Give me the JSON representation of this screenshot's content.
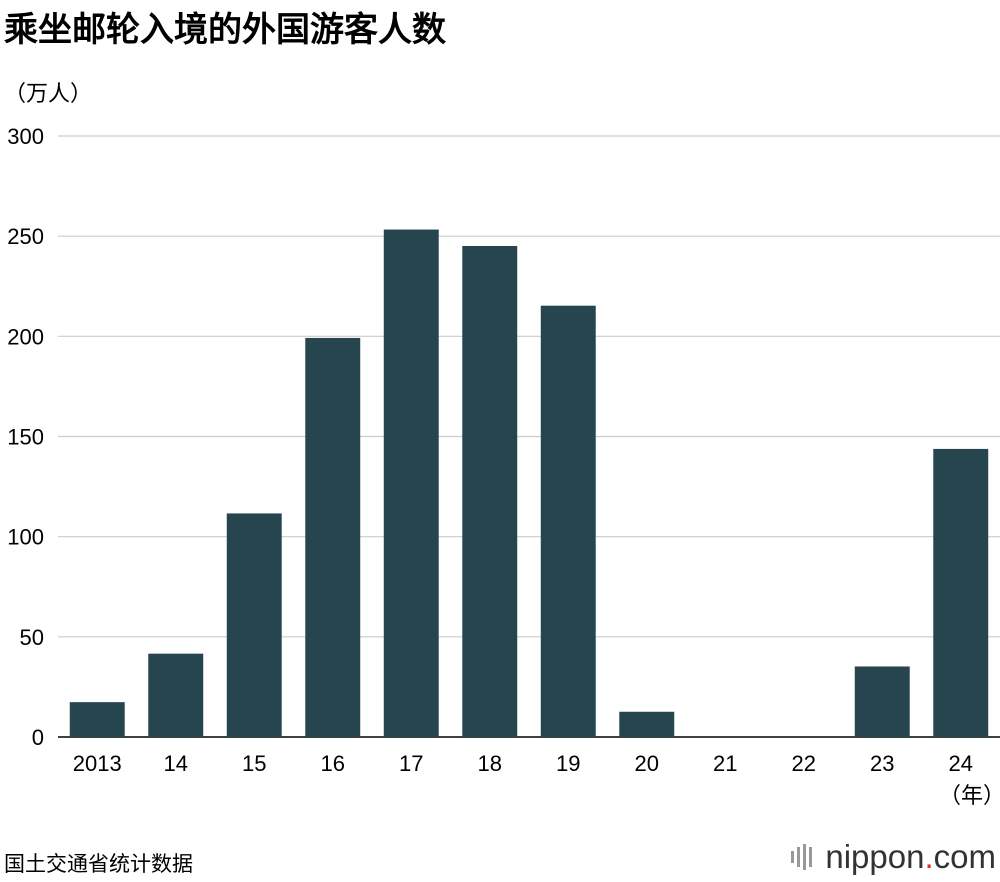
{
  "chart_data": {
    "type": "bar",
    "title": "乘坐邮轮入境的外国游客人数",
    "ylabel": "（万人）",
    "xlabel": "（年）",
    "categories": [
      "2013",
      "14",
      "15",
      "16",
      "17",
      "18",
      "19",
      "20",
      "21",
      "22",
      "23",
      "24"
    ],
    "values": [
      17.4,
      41.6,
      111.6,
      199.2,
      253.3,
      245.1,
      215.3,
      12.6,
      0,
      0,
      35.2,
      143.8
    ],
    "ylim": [
      0,
      300
    ],
    "yticks": [
      0,
      50,
      100,
      150,
      200,
      250,
      300
    ],
    "grid": true,
    "bar_color": "#27454f",
    "grid_color": "#cccccc"
  },
  "source": "国土交通省统计数据",
  "logo": {
    "name": "nippon",
    "dot": ".",
    "suffix": "com",
    "accent": "#d6312b"
  }
}
